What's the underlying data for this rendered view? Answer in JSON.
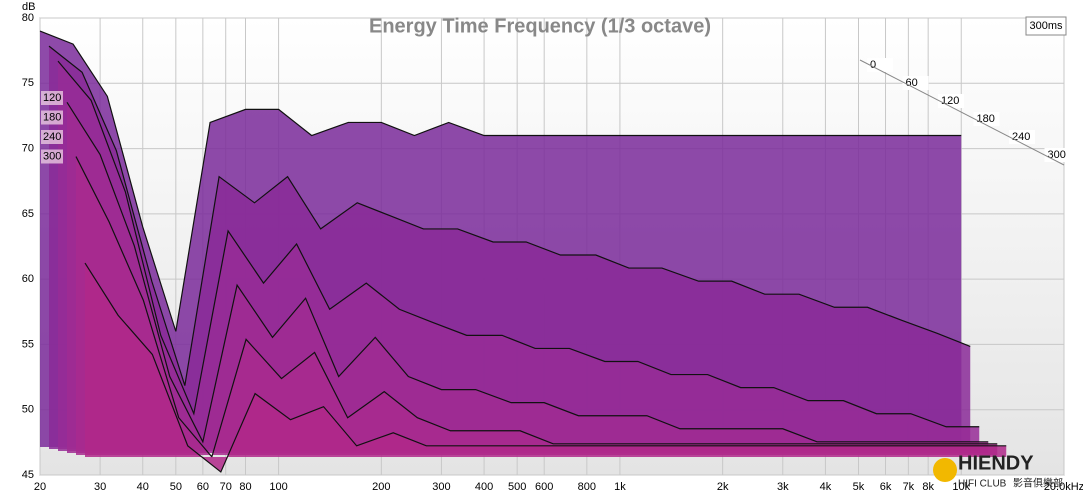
{
  "chart_data": {
    "type": "waterfall",
    "title": "Energy Time Frequency (1/3 octave)",
    "y_label": "dB",
    "time_label": "300ms",
    "x": [
      20,
      25,
      31.5,
      40,
      50,
      63,
      80,
      100,
      125,
      160,
      200,
      250,
      315,
      400,
      500,
      630,
      800,
      1000,
      1250,
      1600,
      2000,
      2500,
      3150,
      4000,
      5000,
      6300,
      8000,
      10000
    ],
    "series": [
      {
        "name": "0",
        "color": "#7a2a9a",
        "values": [
          79,
          78,
          74,
          64,
          56,
          72,
          73,
          73,
          71,
          72,
          72,
          71,
          72,
          71,
          71,
          71,
          71,
          71,
          71,
          71,
          71,
          71,
          71,
          71,
          71,
          71,
          71,
          71
        ]
      },
      {
        "name": "60",
        "color": "#8a2a98",
        "values": [
          78,
          76,
          70,
          60,
          52,
          68,
          66,
          68,
          64,
          66,
          65,
          64,
          64,
          63,
          63,
          62,
          62,
          61,
          61,
          60,
          60,
          59,
          59,
          58,
          58,
          57,
          56,
          55
        ]
      },
      {
        "name": "120",
        "color": "#962c96",
        "values": [
          77,
          74,
          67,
          56,
          50,
          64,
          60,
          63,
          58,
          60,
          58,
          57,
          56,
          56,
          55,
          55,
          54,
          54,
          53,
          53,
          52,
          52,
          51,
          51,
          50,
          50,
          49,
          49
        ]
      },
      {
        "name": "180",
        "color": "#a02c92",
        "values": [
          74,
          70,
          63,
          53,
          48,
          60,
          56,
          59,
          53,
          56,
          53,
          52,
          52,
          51,
          51,
          50,
          50,
          50,
          49,
          49,
          49,
          49,
          48,
          48,
          48,
          48,
          48,
          48
        ]
      },
      {
        "name": "240",
        "color": "#a82a8e",
        "values": [
          70,
          65,
          59,
          50,
          47,
          56,
          53,
          55,
          50,
          52,
          50,
          49,
          49,
          49,
          48,
          48,
          48,
          48,
          48,
          48,
          48,
          48,
          48,
          48,
          48,
          48,
          48,
          48
        ]
      },
      {
        "name": "300",
        "color": "#b0288a",
        "values": [
          62,
          58,
          55,
          48,
          46,
          52,
          50,
          51,
          48,
          49,
          48,
          48,
          48,
          48,
          48,
          48,
          48,
          48,
          48,
          48,
          48,
          48,
          48,
          48,
          48,
          48,
          48,
          48
        ]
      }
    ],
    "xlim": [
      20,
      20000
    ],
    "xticks": [
      20,
      30,
      40,
      50,
      60,
      70,
      80,
      100,
      200,
      300,
      400,
      500,
      600,
      800,
      {
        "value": 1000,
        "label": "1k"
      },
      {
        "value": 2000,
        "label": "2k"
      },
      {
        "value": 3000,
        "label": "3k"
      },
      {
        "value": 4000,
        "label": "4k"
      },
      {
        "value": 5000,
        "label": "5k"
      },
      {
        "value": 6000,
        "label": "6k"
      },
      {
        "value": 7000,
        "label": "7k"
      },
      {
        "value": 8000,
        "label": "8k"
      },
      {
        "value": 10000,
        "label": "10k"
      },
      {
        "value": 20000,
        "label": "20.0kHz"
      }
    ],
    "log_x": true,
    "ylim": [
      45,
      80
    ],
    "yticks": [
      45,
      50,
      55,
      60,
      65,
      70,
      75,
      80
    ],
    "grid": true,
    "watermark": {
      "brand": "HIENDY",
      "sub": "HIFI CLUB",
      "cjk": "影音俱樂部"
    }
  }
}
